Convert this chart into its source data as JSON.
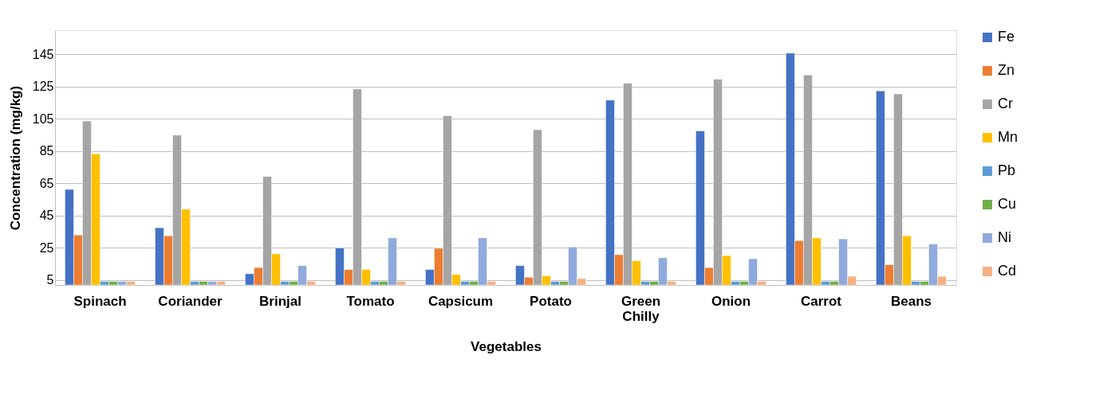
{
  "chart_data": {
    "type": "bar",
    "xlabel": "Vegetables",
    "ylabel": "Concentration (mg/kg)",
    "categories": [
      "Spinach",
      "Coriander",
      "Brinjal",
      "Tomato",
      "Capsicum",
      "Potato",
      "Green Chilly",
      "Onion",
      "Carrot",
      "Beans"
    ],
    "series": [
      {
        "name": "Fe",
        "color": "#4472c4",
        "values": [
          61.3,
          37.5,
          9,
          25,
          11.6,
          14,
          116.7,
          97.6,
          145.8,
          122.4
        ]
      },
      {
        "name": "Zn",
        "color": "#ed7d31",
        "values": [
          33,
          32.5,
          12.8,
          11.6,
          24.7,
          6.8,
          20.8,
          12.8,
          29.5,
          14.6
        ]
      },
      {
        "name": "Cr",
        "color": "#a5a5a5",
        "values": [
          103.7,
          95,
          69.3,
          123.6,
          107,
          98.3,
          127.2,
          129.6,
          132.2,
          120.5
        ]
      },
      {
        "name": "Mn",
        "color": "#ffc000",
        "values": [
          83.4,
          49,
          21.3,
          11.6,
          8.5,
          7.7,
          17,
          20.2,
          31.2,
          32.5
        ]
      },
      {
        "name": "Pb",
        "color": "#5b9bd5",
        "values": [
          4.2,
          4.2,
          4.2,
          4.2,
          4.2,
          4.2,
          4.2,
          4.2,
          4.2,
          4.2
        ]
      },
      {
        "name": "Cu",
        "color": "#70ad47",
        "values": [
          4.2,
          4.2,
          4.2,
          4.2,
          4.2,
          4.2,
          4.2,
          4.2,
          4.2,
          4.2
        ]
      },
      {
        "name": "Ni",
        "color": "#8faadc",
        "values": [
          4.2,
          4.2,
          14,
          31.2,
          31.2,
          25.6,
          18.9,
          18.3,
          30.6,
          27.4
        ]
      },
      {
        "name": "Cd",
        "color": "#f4b183",
        "values": [
          4.2,
          4.2,
          4.2,
          4.2,
          4.2,
          6,
          4.2,
          4.2,
          7.4,
          7.4
        ]
      }
    ],
    "ylim": [
      2,
      160
    ],
    "yticks": [
      5,
      25,
      45,
      65,
      85,
      105,
      125,
      145
    ],
    "grid": "y",
    "legend": "right"
  }
}
